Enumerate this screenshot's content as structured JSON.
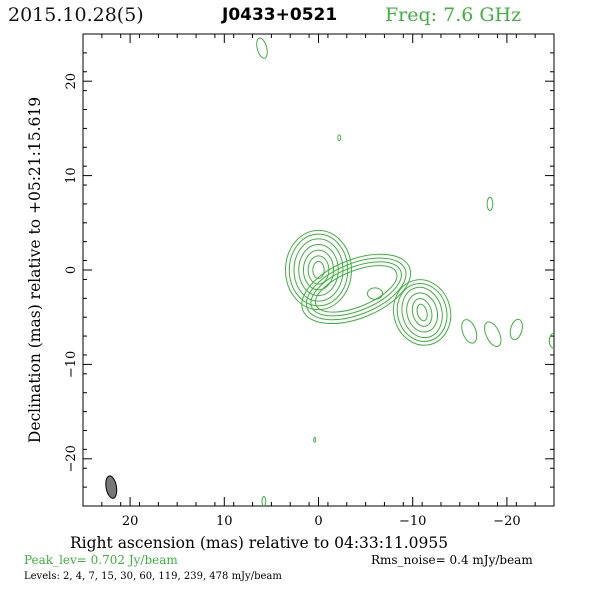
{
  "header": {
    "date": "2015.10.28(5)",
    "source": "J0433+0521",
    "freq": "Freq: 7.6 GHz",
    "freq_color": "#3db33d"
  },
  "chart_data": {
    "type": "contour",
    "xlabel": "Right ascension (mas) relative to 04:33:11.0955",
    "ylabel": "Declination (mas) relative to +05:21:15.619",
    "xlim": [
      25,
      -25
    ],
    "ylim": [
      -25,
      25
    ],
    "x_ticks": [
      20,
      10,
      0,
      -10,
      -20
    ],
    "x_tick_labels": [
      "20",
      "10",
      "0",
      "−10",
      "−20"
    ],
    "y_ticks": [
      20,
      10,
      0,
      -10,
      -20
    ],
    "y_tick_labels": [
      "20",
      "10",
      "0",
      "−10",
      "−20"
    ],
    "contour_color": "#3db33d",
    "beam": {
      "x": 22,
      "y": -23,
      "major_mas": 2.4,
      "minor_mas": 1.1,
      "pa_deg": -10
    },
    "components": [
      {
        "x": 0,
        "y": 0,
        "rings": [
          [
            0.6,
            0.9
          ],
          [
            1.1,
            1.5
          ],
          [
            1.6,
            2.1
          ],
          [
            2.1,
            2.7
          ],
          [
            2.6,
            3.3
          ],
          [
            3.1,
            3.8
          ],
          [
            3.5,
            4.2
          ]
        ]
      },
      {
        "x": -4,
        "y": -2,
        "rings": [
          [
            4.6,
            1.9
          ],
          [
            5.1,
            2.3
          ],
          [
            5.6,
            2.7
          ],
          [
            6.1,
            3.1
          ]
        ],
        "angle": -22
      },
      {
        "x": -6,
        "y": -2.5,
        "rings": [
          [
            0.8,
            0.6
          ]
        ]
      },
      {
        "x": -11,
        "y": -4.5,
        "rings": [
          [
            0.5,
            0.9
          ],
          [
            1.0,
            1.5
          ],
          [
            1.6,
            2.1
          ],
          [
            2.1,
            2.7
          ],
          [
            2.6,
            3.1
          ],
          [
            3.0,
            3.5
          ]
        ],
        "angle": -15
      },
      {
        "x": -16,
        "y": -6.5,
        "rings": [
          [
            0.7,
            1.3
          ]
        ],
        "angle": -20
      },
      {
        "x": -18.5,
        "y": -6.8,
        "rings": [
          [
            0.7,
            1.4
          ]
        ],
        "angle": -25
      },
      {
        "x": -21,
        "y": -6.3,
        "rings": [
          [
            0.6,
            1.1
          ]
        ],
        "angle": 15
      },
      {
        "x": -25,
        "y": -7.5,
        "rings": [
          [
            0.5,
            0.8
          ]
        ]
      },
      {
        "x": 6,
        "y": 23.5,
        "rings": [
          [
            0.5,
            1.1
          ]
        ],
        "angle": -15
      },
      {
        "x": -2.2,
        "y": 14,
        "rings": [
          [
            0.15,
            0.3
          ]
        ]
      },
      {
        "x": -18.2,
        "y": 7,
        "rings": [
          [
            0.3,
            0.7
          ]
        ]
      },
      {
        "x": 0.4,
        "y": -18,
        "rings": [
          [
            0.1,
            0.25
          ]
        ]
      },
      {
        "x": 5.8,
        "y": -24.5,
        "rings": [
          [
            0.2,
            0.5
          ]
        ]
      }
    ]
  },
  "footer": {
    "peak": "Peak_lev=  0.702 Jy/beam",
    "rms": "Rms_noise=  0.4 mJy/beam",
    "levels": "Levels:   2,   4,   7,   15,   30,   60, 119, 239, 478 mJy/beam"
  }
}
